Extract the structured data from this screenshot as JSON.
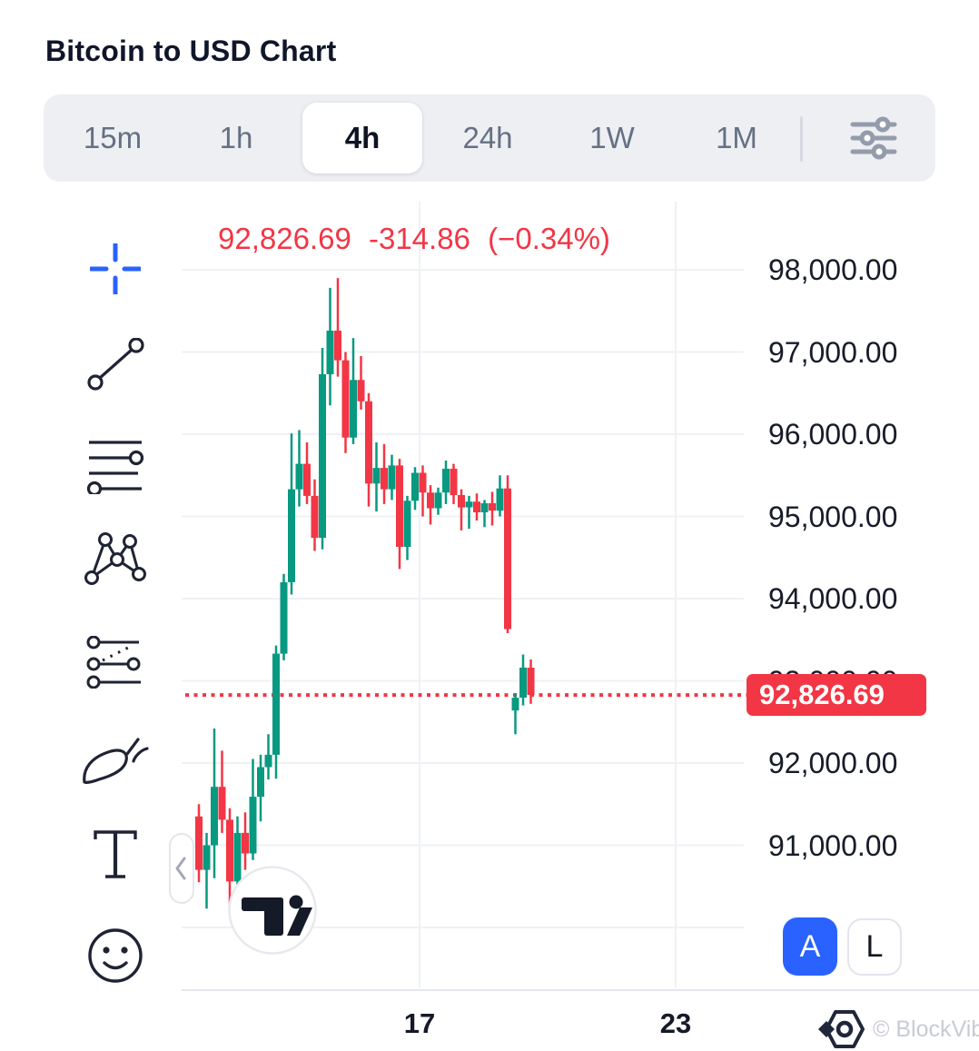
{
  "title": "Bitcoin to USD Chart",
  "tabbar": {
    "items": [
      "15m",
      "1h",
      "4h",
      "24h",
      "1W",
      "1M"
    ],
    "active": "4h",
    "settings_icon": "sliders-icon"
  },
  "price_header": {
    "price": "92,826.69",
    "change": "-314.86",
    "change_pct": "(−0.34%)",
    "color": "#f23645"
  },
  "drawing_tools": [
    "crosshair",
    "trend-line",
    "horizontal-lines",
    "xabcd-pattern",
    "projection",
    "brush",
    "text",
    "emoji"
  ],
  "y_axis": {
    "labels": [
      "98,000.00",
      "97,000.00",
      "96,000.00",
      "95,000.00",
      "94,000.00",
      "93,000.00",
      "92,000.00",
      "91,000.00"
    ],
    "values": [
      98000,
      97000,
      96000,
      95000,
      94000,
      93000,
      92000,
      91000
    ]
  },
  "x_axis": {
    "labels": [
      "17",
      "23"
    ]
  },
  "price_scale_label": "92,826.69",
  "scale_buttons": {
    "auto": "A",
    "log": "L"
  },
  "pane_collapse_icon": "chevron-left-icon",
  "attribution": "© BlockVibe",
  "chart_data": {
    "type": "candlestick",
    "title": "Bitcoin to USD Chart",
    "symbol": "BTC/USD",
    "interval_selected": "4h",
    "last_price": 92826.69,
    "change_abs": -314.86,
    "change_pct": -0.34,
    "up_color": "#089981",
    "down_color": "#f23645",
    "grid": true,
    "y_gridlines": [
      98000,
      97000,
      96000,
      95000,
      94000,
      93000,
      92000,
      91000,
      90000
    ],
    "y_range_visible": [
      90100,
      98800
    ],
    "x_tick_labels": [
      "17",
      "23"
    ],
    "price_line": {
      "value": 92826.69,
      "style": "dotted",
      "color": "#f23645"
    },
    "candles_ohlc": [
      [
        91350,
        91500,
        90550,
        90700
      ],
      [
        90700,
        91150,
        90230,
        91000
      ],
      [
        91000,
        92420,
        90600,
        91710
      ],
      [
        91710,
        92150,
        91150,
        91310
      ],
      [
        91310,
        91450,
        90270,
        90560
      ],
      [
        90560,
        91350,
        90400,
        91150
      ],
      [
        91150,
        91400,
        90700,
        90900
      ],
      [
        90900,
        92050,
        90820,
        91590
      ],
      [
        91590,
        92100,
        91290,
        91950
      ],
      [
        91950,
        92350,
        91800,
        92100
      ],
      [
        92100,
        93430,
        91810,
        93330
      ],
      [
        93330,
        94300,
        93250,
        94200
      ],
      [
        94200,
        96010,
        94050,
        95330
      ],
      [
        95330,
        96050,
        95120,
        95640
      ],
      [
        95640,
        95900,
        95150,
        95250
      ],
      [
        95250,
        95450,
        94580,
        94740
      ],
      [
        94740,
        97050,
        94600,
        96730
      ],
      [
        96730,
        97780,
        96350,
        97260
      ],
      [
        97260,
        97900,
        96700,
        96900
      ],
      [
        96900,
        97000,
        95770,
        95960
      ],
      [
        95960,
        97170,
        95880,
        96660
      ],
      [
        96660,
        96950,
        96300,
        96400
      ],
      [
        96400,
        96500,
        95120,
        95400
      ],
      [
        95400,
        95900,
        95060,
        95590
      ],
      [
        95590,
        95880,
        95150,
        95330
      ],
      [
        95330,
        95750,
        95200,
        95620
      ],
      [
        95620,
        95700,
        94360,
        94630
      ],
      [
        94630,
        95250,
        94470,
        95190
      ],
      [
        95190,
        95600,
        95080,
        95530
      ],
      [
        95530,
        95620,
        95000,
        95290
      ],
      [
        95290,
        95380,
        94900,
        95100
      ],
      [
        95100,
        95350,
        95020,
        95290
      ],
      [
        95290,
        95680,
        95150,
        95580
      ],
      [
        95580,
        95640,
        95150,
        95260
      ],
      [
        95260,
        95330,
        94830,
        95110
      ],
      [
        95110,
        95250,
        94850,
        95180
      ],
      [
        95180,
        95280,
        94950,
        95050
      ],
      [
        95050,
        95200,
        94870,
        95160
      ],
      [
        95160,
        95300,
        94890,
        95070
      ],
      [
        95070,
        95500,
        95000,
        95340
      ],
      [
        95340,
        95500,
        93580,
        93630
      ],
      [
        92640,
        92850,
        92350,
        92795
      ],
      [
        92795,
        93320,
        92700,
        93160
      ],
      [
        93160,
        93260,
        92720,
        92827
      ]
    ]
  }
}
